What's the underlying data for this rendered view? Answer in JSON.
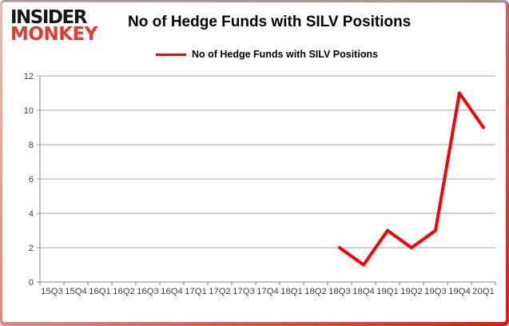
{
  "brand": {
    "logo_line1": "INSIDER",
    "logo_line2": "MONKEY",
    "logo_black": "#161616",
    "logo_red": "#e23b2e"
  },
  "header": {
    "title": "No of Hedge Funds with SILV Positions"
  },
  "legend": {
    "label": "No of Hedge Funds with SILV Positions"
  },
  "chart_data": {
    "type": "line",
    "title": "No of Hedge Funds with SILV Positions",
    "categories": [
      "15Q3",
      "15Q4",
      "16Q1",
      "16Q2",
      "16Q3",
      "16Q4",
      "17Q1",
      "17Q2",
      "17Q3",
      "17Q4",
      "18Q1",
      "18Q2",
      "18Q3",
      "18Q4",
      "19Q1",
      "19Q2",
      "19Q3",
      "19Q4",
      "20Q1"
    ],
    "series": [
      {
        "name": "No of Hedge Funds with SILV Positions",
        "color": "#ff0000",
        "values": [
          null,
          null,
          null,
          null,
          null,
          null,
          null,
          null,
          null,
          null,
          null,
          null,
          2,
          1,
          3,
          2,
          3,
          11,
          9
        ]
      }
    ],
    "xlabel": "",
    "ylabel": "",
    "ylim": [
      0,
      12
    ],
    "yticks": [
      0,
      2,
      4,
      6,
      8,
      10,
      12
    ],
    "grid": true,
    "legend_position": "top",
    "axis_color": "#808080",
    "grid_color": "#a6a6a6",
    "tick_label_color": "#3f3f3f"
  }
}
